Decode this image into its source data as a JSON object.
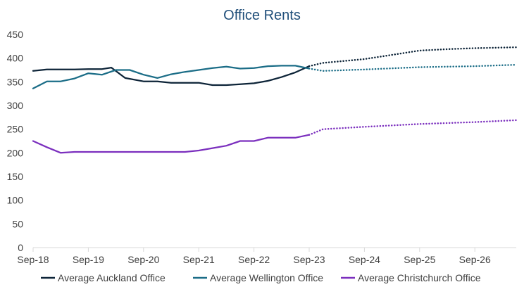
{
  "chart_data": {
    "type": "line",
    "title": "Office Rents",
    "xlabel": "",
    "ylabel": "",
    "ylim": [
      0,
      450
    ],
    "yticks": [
      0,
      50,
      100,
      150,
      200,
      250,
      300,
      350,
      400,
      450
    ],
    "x_range": [
      "2018-09",
      "2027-06"
    ],
    "x_tick_dates": [
      "2018-09",
      "2019-09",
      "2020-09",
      "2021-09",
      "2022-09",
      "2023-09",
      "2024-09",
      "2025-09",
      "2026-09"
    ],
    "x_tick_labels": [
      "Sep-18",
      "Sep-19",
      "Sep-20",
      "Sep-21",
      "Sep-22",
      "Sep-23",
      "Sep-24",
      "Sep-25",
      "Sep-26"
    ],
    "grid": false,
    "legend_position": "bottom",
    "forecast_style": "dotted",
    "series": [
      {
        "name": "Average Auckland Office",
        "color": "#0d2438",
        "actual": [
          [
            "2018-09",
            373
          ],
          [
            "2018-12",
            376
          ],
          [
            "2019-03",
            376
          ],
          [
            "2019-06",
            376
          ],
          [
            "2019-09",
            377
          ],
          [
            "2019-12",
            377
          ],
          [
            "2020-02",
            380
          ],
          [
            "2020-05",
            358
          ],
          [
            "2020-09",
            351
          ],
          [
            "2020-12",
            351
          ],
          [
            "2021-03",
            348
          ],
          [
            "2021-06",
            348
          ],
          [
            "2021-09",
            348
          ],
          [
            "2021-12",
            343
          ],
          [
            "2022-03",
            343
          ],
          [
            "2022-06",
            345
          ],
          [
            "2022-09",
            347
          ],
          [
            "2022-12",
            352
          ],
          [
            "2023-03",
            360
          ],
          [
            "2023-06",
            370
          ],
          [
            "2023-09",
            383
          ]
        ],
        "forecast": [
          [
            "2023-09",
            383
          ],
          [
            "2023-12",
            390
          ],
          [
            "2024-09",
            398
          ],
          [
            "2025-03",
            407
          ],
          [
            "2025-09",
            416
          ],
          [
            "2026-03",
            419
          ],
          [
            "2026-09",
            421
          ],
          [
            "2027-06",
            423
          ]
        ]
      },
      {
        "name": "Average Wellington Office",
        "color": "#1b6d87",
        "actual": [
          [
            "2018-09",
            336
          ],
          [
            "2018-12",
            351
          ],
          [
            "2019-03",
            351
          ],
          [
            "2019-06",
            357
          ],
          [
            "2019-09",
            368
          ],
          [
            "2019-12",
            365
          ],
          [
            "2020-03",
            375
          ],
          [
            "2020-06",
            375
          ],
          [
            "2020-09",
            365
          ],
          [
            "2020-12",
            358
          ],
          [
            "2021-03",
            366
          ],
          [
            "2021-06",
            371
          ],
          [
            "2021-09",
            375
          ],
          [
            "2021-12",
            379
          ],
          [
            "2022-03",
            382
          ],
          [
            "2022-06",
            378
          ],
          [
            "2022-09",
            379
          ],
          [
            "2022-12",
            383
          ],
          [
            "2023-03",
            384
          ],
          [
            "2023-06",
            384
          ],
          [
            "2023-09",
            378
          ]
        ],
        "forecast": [
          [
            "2023-09",
            378
          ],
          [
            "2023-12",
            373
          ],
          [
            "2024-09",
            376
          ],
          [
            "2025-09",
            381
          ],
          [
            "2026-09",
            383
          ],
          [
            "2027-06",
            386
          ]
        ]
      },
      {
        "name": "Average Christchurch Office",
        "color": "#7b2fbe",
        "actual": [
          [
            "2018-09",
            225
          ],
          [
            "2018-12",
            212
          ],
          [
            "2019-03",
            200
          ],
          [
            "2019-06",
            202
          ],
          [
            "2019-09",
            202
          ],
          [
            "2019-12",
            202
          ],
          [
            "2020-03",
            202
          ],
          [
            "2020-06",
            202
          ],
          [
            "2020-09",
            202
          ],
          [
            "2020-12",
            202
          ],
          [
            "2021-03",
            202
          ],
          [
            "2021-06",
            202
          ],
          [
            "2021-09",
            205
          ],
          [
            "2021-12",
            210
          ],
          [
            "2022-03",
            215
          ],
          [
            "2022-06",
            225
          ],
          [
            "2022-09",
            225
          ],
          [
            "2022-12",
            232
          ],
          [
            "2023-03",
            232
          ],
          [
            "2023-06",
            232
          ],
          [
            "2023-09",
            238
          ]
        ],
        "forecast": [
          [
            "2023-09",
            238
          ],
          [
            "2023-12",
            250
          ],
          [
            "2024-09",
            255
          ],
          [
            "2025-09",
            261
          ],
          [
            "2026-09",
            265
          ],
          [
            "2027-06",
            269
          ]
        ]
      }
    ]
  }
}
